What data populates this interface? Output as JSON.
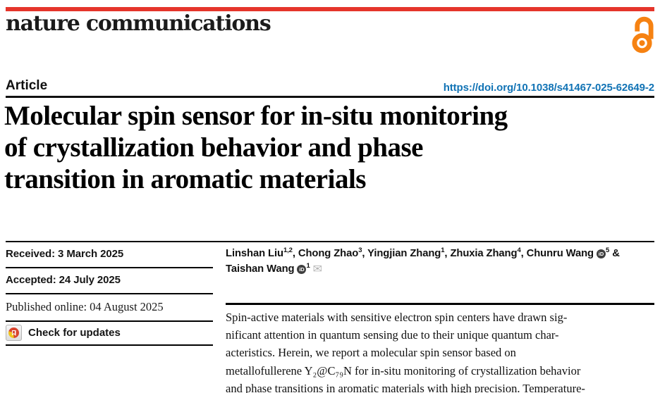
{
  "masthead": {
    "journal": "nature communications"
  },
  "article_bar": {
    "type_label": "Article",
    "doi": "https://doi.org/10.1038/s41467-025-62649-2"
  },
  "title": "Molecular spin sensor for in-situ monitoring\nof crystallization behavior and phase\ntransition in aromatic materials",
  "dates": {
    "received": "Received: 3 March 2025",
    "accepted": "Accepted: 24 July 2025",
    "published": "Published online: 04 August 2025"
  },
  "check_updates": {
    "label": "Check for updates"
  },
  "authors": {
    "separator": ", ",
    "orcid_label": "iD",
    "email_icon": "✉",
    "rows": [
      {
        "suffix": " &",
        "items": [
          {
            "name": "Linshan Liu",
            "sup": "1,2"
          },
          {
            "name": "Chong Zhao",
            "sup": "3"
          },
          {
            "name": "Yingjian Zhang",
            "sup": "1"
          },
          {
            "name": "Zhuxia Zhang",
            "sup": "4"
          },
          {
            "name": "Chunru Wang",
            "sup": "5",
            "orcid": true
          }
        ]
      },
      {
        "suffix": "",
        "items": [
          {
            "name": "Taishan Wang",
            "sup": "1",
            "orcid": true,
            "email": true
          }
        ]
      }
    ]
  },
  "abstract": "Spin-active materials with sensitive electron spin centers have drawn sig-\nnificant attention in quantum sensing due to their unique quantum char-\nacteristics. Herein, we report a molecular spin sensor based on\nmetallofullerene Y₂@C₇₉N for in-situ monitoring of crystallization behavior\nand phase transitions in aromatic materials with high precision. Temperature-",
  "icons": {
    "open_access": "open-access-padlock",
    "crossmark": "crossmark-circle",
    "orcid": "orcid-id-circle",
    "email": "envelope"
  },
  "colors": {
    "nature_red": "#e5352b",
    "oa_orange": "#f68212",
    "doi_blue": "#1173b5"
  }
}
